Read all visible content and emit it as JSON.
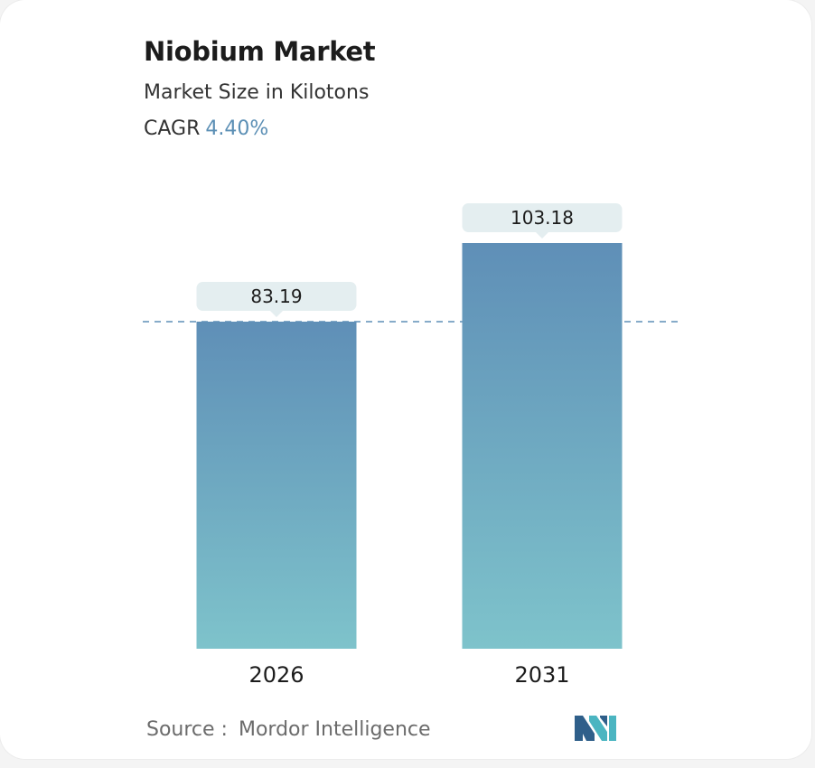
{
  "title": "Niobium Market",
  "subtitle": "Market Size in Kilotons",
  "cagr_label": "CAGR",
  "cagr_value": "4.40%",
  "source_label": "Source :",
  "source_value": "Mordor Intelligence",
  "colors": {
    "bar_top": "#5f8fb7",
    "bar_bottom": "#7ec3cb",
    "label_bg": "#e4eef0",
    "dashed_line": "#5f8fb7",
    "cagr": "#5b8fb5",
    "logo_dark": "#2f5f8a",
    "logo_light": "#4bb5c1"
  },
  "logo_icon": "mordor-intelligence-logo",
  "chart_data": {
    "type": "bar",
    "categories": [
      "2026",
      "2031"
    ],
    "values": [
      83.19,
      103.18
    ],
    "value_labels": [
      "83.19",
      "103.18"
    ],
    "title": "Niobium Market",
    "xlabel": "",
    "ylabel": "",
    "ylim": [
      0,
      103.18
    ],
    "grid": false,
    "reference_line": 83.19
  }
}
